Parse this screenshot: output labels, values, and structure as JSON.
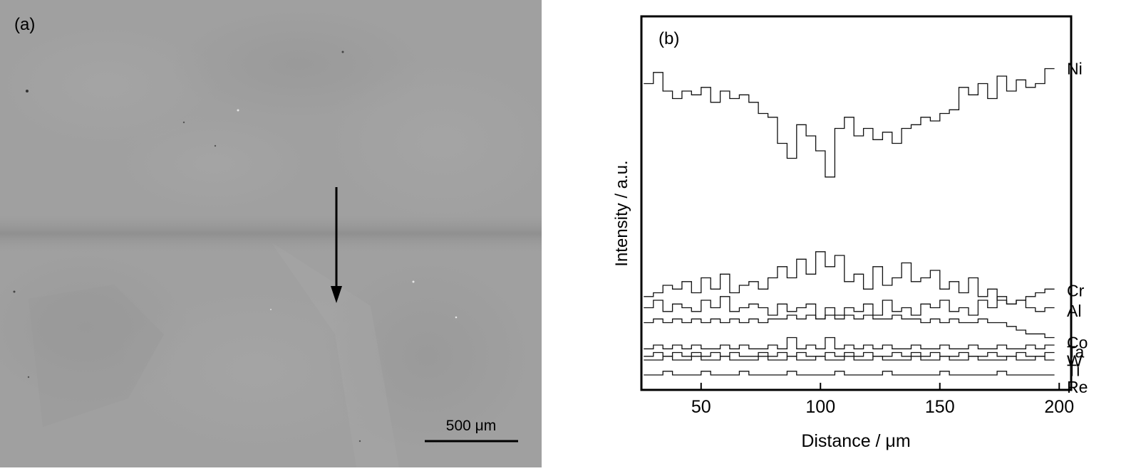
{
  "panel_a": {
    "label": "(a)",
    "scale_bar_label": "500 μm"
  },
  "panel_b": {
    "label": "(b)"
  },
  "chart_data": {
    "type": "line",
    "title": "",
    "xlabel": "Distance / μm",
    "ylabel": "Intensity / a.u.",
    "xlim": [
      25,
      205
    ],
    "ylim": [
      0,
      1
    ],
    "xticks": [
      50,
      100,
      150,
      200
    ],
    "grid": false,
    "legend": "inline labels at right end of each series",
    "x": [
      28,
      32,
      36,
      40,
      44,
      48,
      52,
      56,
      60,
      64,
      68,
      72,
      76,
      80,
      84,
      88,
      92,
      96,
      100,
      104,
      108,
      112,
      116,
      120,
      124,
      128,
      132,
      136,
      140,
      144,
      148,
      152,
      156,
      160,
      164,
      168,
      172,
      176,
      180,
      184,
      188,
      192,
      196
    ],
    "series": [
      {
        "name": "Ni",
        "values": [
          0.82,
          0.85,
          0.8,
          0.78,
          0.8,
          0.79,
          0.81,
          0.77,
          0.8,
          0.78,
          0.79,
          0.77,
          0.74,
          0.73,
          0.66,
          0.62,
          0.71,
          0.68,
          0.64,
          0.57,
          0.7,
          0.73,
          0.68,
          0.7,
          0.67,
          0.69,
          0.66,
          0.7,
          0.71,
          0.73,
          0.72,
          0.74,
          0.75,
          0.81,
          0.79,
          0.82,
          0.78,
          0.84,
          0.8,
          0.83,
          0.81,
          0.82,
          0.86
        ]
      },
      {
        "name": "Cr",
        "values": [
          0.25,
          0.26,
          0.28,
          0.27,
          0.29,
          0.26,
          0.3,
          0.27,
          0.31,
          0.26,
          0.28,
          0.29,
          0.27,
          0.3,
          0.33,
          0.3,
          0.35,
          0.31,
          0.37,
          0.33,
          0.36,
          0.29,
          0.31,
          0.27,
          0.33,
          0.28,
          0.3,
          0.34,
          0.29,
          0.3,
          0.32,
          0.27,
          0.29,
          0.26,
          0.3,
          0.25,
          0.27,
          0.24,
          0.23,
          0.24,
          0.25,
          0.26,
          0.27
        ]
      },
      {
        "name": "Al",
        "values": [
          0.22,
          0.24,
          0.21,
          0.23,
          0.22,
          0.21,
          0.24,
          0.22,
          0.25,
          0.21,
          0.22,
          0.23,
          0.22,
          0.2,
          0.23,
          0.21,
          0.22,
          0.23,
          0.19,
          0.22,
          0.2,
          0.22,
          0.21,
          0.23,
          0.2,
          0.24,
          0.21,
          0.22,
          0.2,
          0.23,
          0.22,
          0.24,
          0.21,
          0.22,
          0.2,
          0.24,
          0.22,
          0.25,
          0.23,
          0.24,
          0.22,
          0.21,
          0.22
        ]
      },
      {
        "name": "Co",
        "values": [
          0.18,
          0.19,
          0.18,
          0.19,
          0.18,
          0.19,
          0.18,
          0.19,
          0.18,
          0.19,
          0.18,
          0.19,
          0.18,
          0.19,
          0.19,
          0.2,
          0.19,
          0.2,
          0.19,
          0.2,
          0.19,
          0.2,
          0.19,
          0.2,
          0.19,
          0.19,
          0.2,
          0.19,
          0.19,
          0.18,
          0.19,
          0.18,
          0.19,
          0.18,
          0.18,
          0.19,
          0.18,
          0.18,
          0.17,
          0.16,
          0.15,
          0.15,
          0.14
        ]
      },
      {
        "name": "Ta",
        "values": [
          0.11,
          0.12,
          0.11,
          0.12,
          0.11,
          0.12,
          0.11,
          0.11,
          0.12,
          0.11,
          0.12,
          0.11,
          0.11,
          0.12,
          0.11,
          0.14,
          0.11,
          0.12,
          0.11,
          0.14,
          0.11,
          0.12,
          0.11,
          0.12,
          0.11,
          0.12,
          0.11,
          0.11,
          0.12,
          0.11,
          0.11,
          0.12,
          0.11,
          0.11,
          0.12,
          0.11,
          0.11,
          0.12,
          0.11,
          0.11,
          0.12,
          0.11,
          0.12
        ]
      },
      {
        "name": "W",
        "values": [
          0.09,
          0.1,
          0.09,
          0.1,
          0.09,
          0.1,
          0.09,
          0.1,
          0.09,
          0.1,
          0.09,
          0.09,
          0.1,
          0.09,
          0.1,
          0.09,
          0.1,
          0.09,
          0.09,
          0.1,
          0.09,
          0.1,
          0.09,
          0.1,
          0.09,
          0.09,
          0.1,
          0.09,
          0.1,
          0.09,
          0.1,
          0.09,
          0.09,
          0.1,
          0.09,
          0.09,
          0.1,
          0.09,
          0.09,
          0.1,
          0.09,
          0.09,
          0.1
        ]
      },
      {
        "name": "Ti",
        "values": [
          0.08,
          0.08,
          0.09,
          0.08,
          0.08,
          0.09,
          0.08,
          0.08,
          0.09,
          0.08,
          0.08,
          0.08,
          0.09,
          0.08,
          0.08,
          0.09,
          0.08,
          0.08,
          0.09,
          0.08,
          0.08,
          0.09,
          0.08,
          0.08,
          0.09,
          0.08,
          0.08,
          0.08,
          0.09,
          0.08,
          0.08,
          0.09,
          0.08,
          0.08,
          0.09,
          0.08,
          0.08,
          0.08,
          0.09,
          0.08,
          0.08,
          0.09,
          0.08
        ]
      },
      {
        "name": "Re",
        "values": [
          0.04,
          0.04,
          0.05,
          0.04,
          0.04,
          0.04,
          0.05,
          0.04,
          0.04,
          0.04,
          0.05,
          0.04,
          0.04,
          0.04,
          0.04,
          0.05,
          0.04,
          0.04,
          0.04,
          0.04,
          0.05,
          0.04,
          0.04,
          0.04,
          0.04,
          0.05,
          0.04,
          0.04,
          0.04,
          0.04,
          0.04,
          0.05,
          0.04,
          0.04,
          0.04,
          0.04,
          0.04,
          0.05,
          0.04,
          0.04,
          0.04,
          0.04,
          0.04
        ]
      }
    ]
  }
}
